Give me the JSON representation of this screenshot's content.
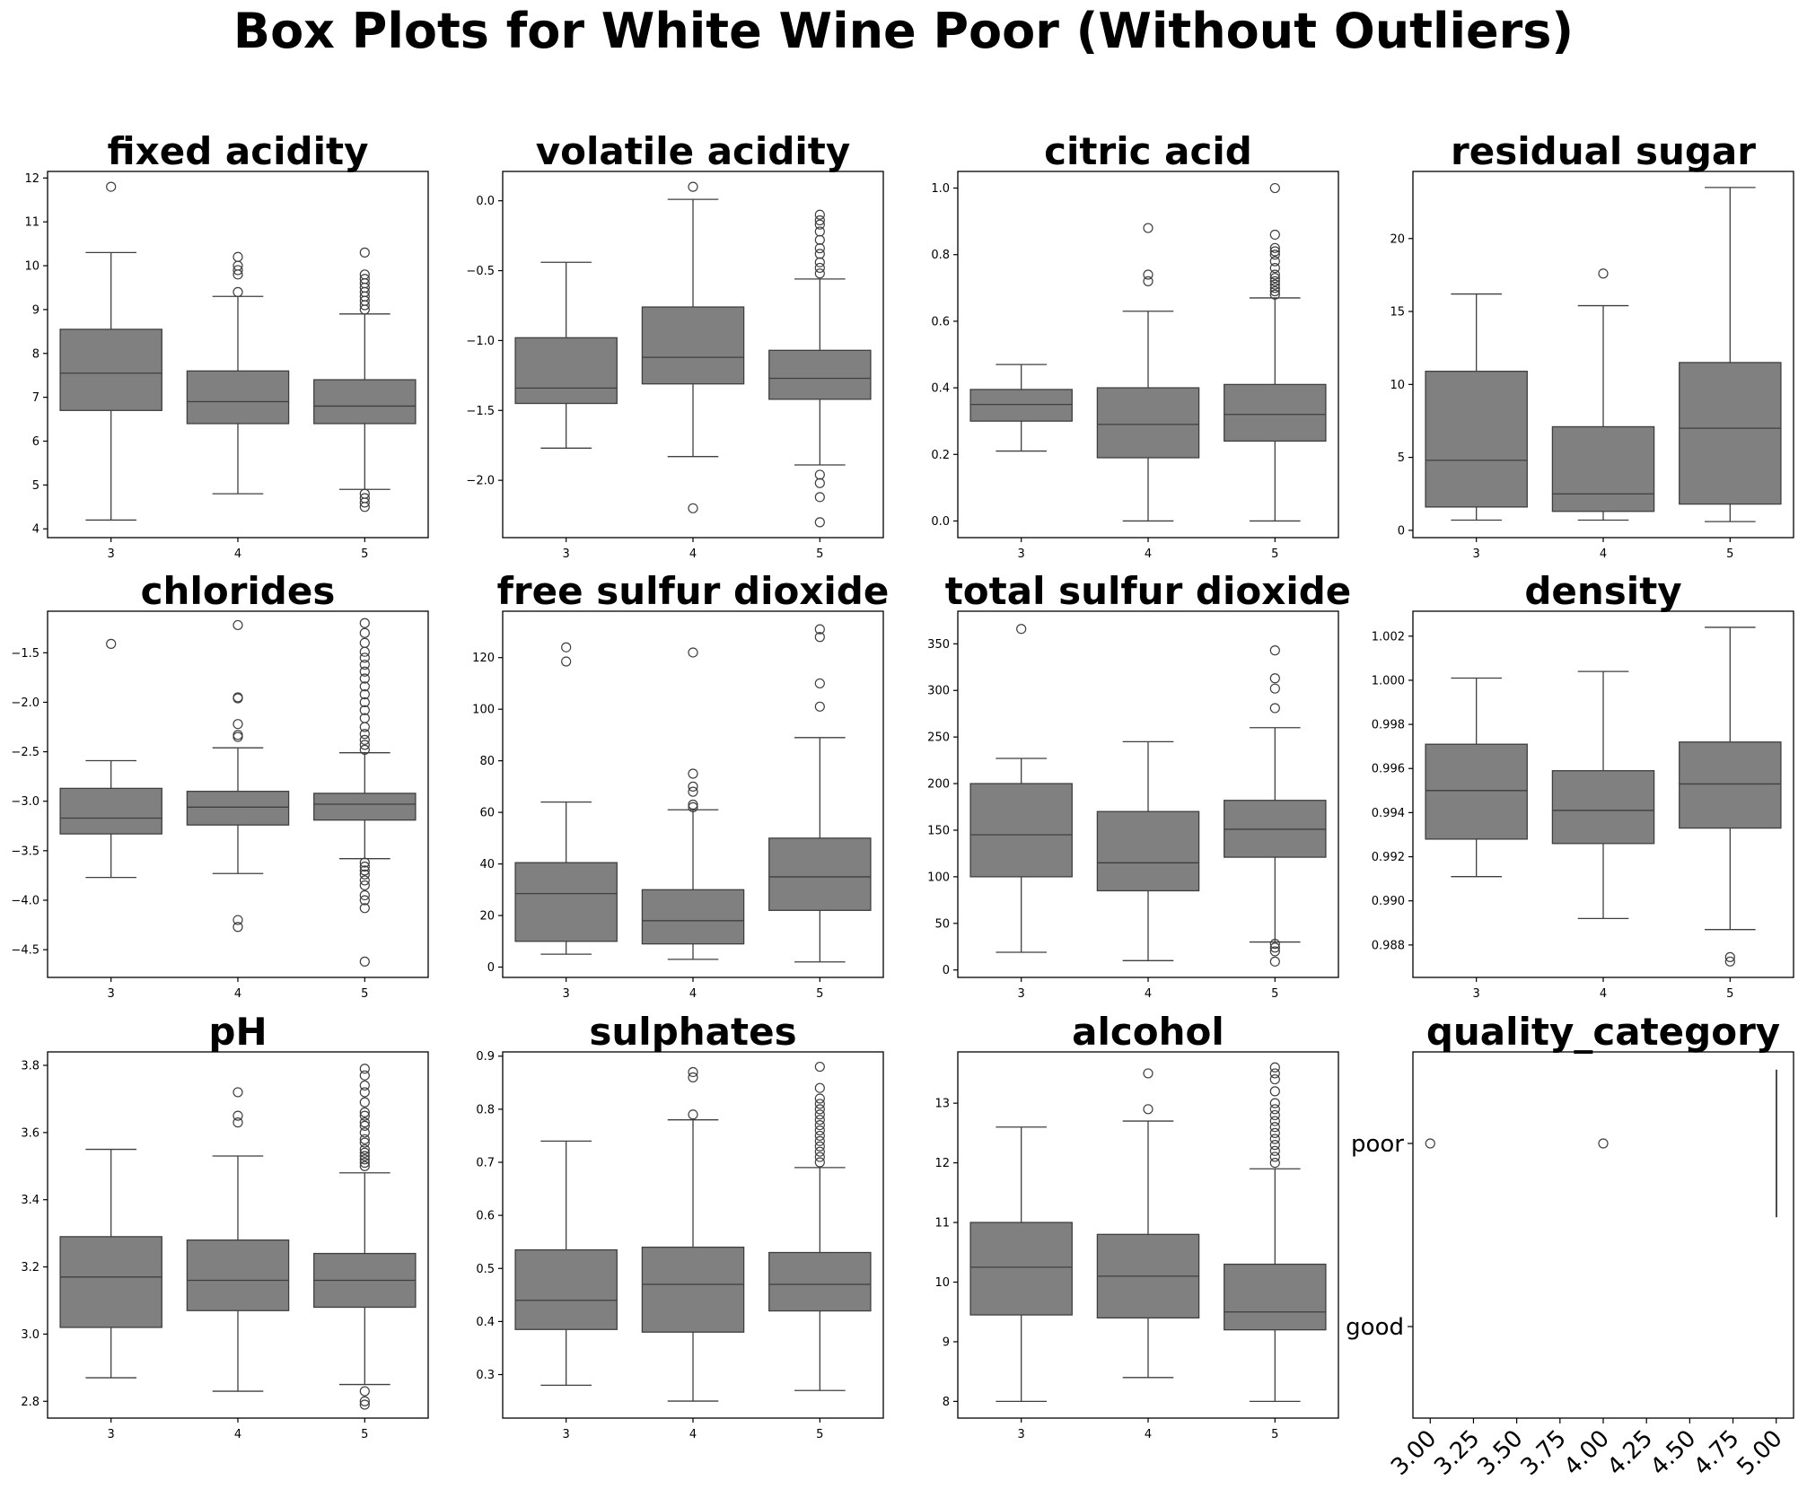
{
  "title": "Box Plots for White Wine Poor (Without Outliers)",
  "chart_data": [
    {
      "type": "box",
      "title": "fixed acidity",
      "categories": [
        "3",
        "4",
        "5"
      ],
      "ylim": [
        3.8,
        12.15
      ],
      "yticks": [
        4,
        5,
        6,
        7,
        8,
        9,
        10,
        11,
        12
      ],
      "ytick_labels": [
        "4",
        "5",
        "6",
        "7",
        "8",
        "9",
        "10",
        "11",
        "12"
      ],
      "boxes": [
        {
          "category": "3",
          "whislo": 4.2,
          "q1": 6.7,
          "med": 7.55,
          "q3": 8.55,
          "whishi": 10.3,
          "fliers": [
            11.8
          ]
        },
        {
          "category": "4",
          "whislo": 4.8,
          "q1": 6.4,
          "med": 6.9,
          "q3": 7.6,
          "whishi": 9.3,
          "fliers": [
            9.4,
            9.8,
            9.9,
            10.0,
            10.2
          ]
        },
        {
          "category": "5",
          "whislo": 4.9,
          "q1": 6.4,
          "med": 6.8,
          "q3": 7.4,
          "whishi": 8.9,
          "fliers": [
            4.5,
            4.6,
            4.7,
            4.8,
            9.0,
            9.1,
            9.2,
            9.3,
            9.4,
            9.5,
            9.6,
            9.7,
            9.8,
            10.3
          ]
        }
      ]
    },
    {
      "type": "box",
      "title": "volatile acidity",
      "categories": [
        "3",
        "4",
        "5"
      ],
      "ylim": [
        -2.41,
        0.21
      ],
      "yticks": [
        -2.0,
        -1.5,
        -1.0,
        -0.5,
        0.0
      ],
      "ytick_labels": [
        "−2.0",
        "−1.5",
        "−1.0",
        "−0.5",
        "0.0"
      ],
      "boxes": [
        {
          "category": "3",
          "whislo": -1.77,
          "q1": -1.45,
          "med": -1.34,
          "q3": -0.98,
          "whishi": -0.44,
          "fliers": []
        },
        {
          "category": "4",
          "whislo": -1.83,
          "q1": -1.31,
          "med": -1.12,
          "q3": -0.76,
          "whishi": 0.01,
          "fliers": [
            -2.2,
            0.1
          ]
        },
        {
          "category": "5",
          "whislo": -1.89,
          "q1": -1.42,
          "med": -1.27,
          "q3": -1.07,
          "whishi": -0.56,
          "fliers": [
            -2.3,
            -2.12,
            -2.02,
            -1.96,
            -0.52,
            -0.48,
            -0.44,
            -0.38,
            -0.34,
            -0.28,
            -0.22,
            -0.17,
            -0.14,
            -0.1
          ]
        }
      ]
    },
    {
      "type": "box",
      "title": "citric acid",
      "categories": [
        "3",
        "4",
        "5"
      ],
      "ylim": [
        -0.05,
        1.05
      ],
      "yticks": [
        0.0,
        0.2,
        0.4,
        0.6,
        0.8,
        1.0
      ],
      "ytick_labels": [
        "0.0",
        "0.2",
        "0.4",
        "0.6",
        "0.8",
        "1.0"
      ],
      "boxes": [
        {
          "category": "3",
          "whislo": 0.21,
          "q1": 0.3,
          "med": 0.35,
          "q3": 0.395,
          "whishi": 0.47,
          "fliers": []
        },
        {
          "category": "4",
          "whislo": 0.0,
          "q1": 0.19,
          "med": 0.29,
          "q3": 0.4,
          "whishi": 0.63,
          "fliers": [
            0.72,
            0.74,
            0.88
          ]
        },
        {
          "category": "5",
          "whislo": 0.0,
          "q1": 0.24,
          "med": 0.32,
          "q3": 0.41,
          "whishi": 0.67,
          "fliers": [
            0.68,
            0.69,
            0.7,
            0.71,
            0.72,
            0.73,
            0.74,
            0.76,
            0.78,
            0.8,
            0.81,
            0.82,
            0.86,
            1.0
          ]
        }
      ]
    },
    {
      "type": "box",
      "title": "residual sugar",
      "categories": [
        "3",
        "4",
        "5"
      ],
      "ylim": [
        -0.5,
        24.6
      ],
      "yticks": [
        0,
        5,
        10,
        15,
        20
      ],
      "ytick_labels": [
        "0",
        "5",
        "10",
        "15",
        "20"
      ],
      "boxes": [
        {
          "category": "3",
          "whislo": 0.7,
          "q1": 1.6,
          "med": 4.8,
          "q3": 10.9,
          "whishi": 16.2,
          "fliers": []
        },
        {
          "category": "4",
          "whislo": 0.7,
          "q1": 1.3,
          "med": 2.5,
          "q3": 7.1,
          "whishi": 15.4,
          "fliers": [
            17.6
          ]
        },
        {
          "category": "5",
          "whislo": 0.6,
          "q1": 1.8,
          "med": 7.0,
          "q3": 11.5,
          "whishi": 23.5,
          "fliers": []
        }
      ]
    },
    {
      "type": "box",
      "title": "chlorides",
      "categories": [
        "3",
        "4",
        "5"
      ],
      "ylim": [
        -4.78,
        -1.08
      ],
      "yticks": [
        -4.5,
        -4.0,
        -3.5,
        -3.0,
        -2.5,
        -2.0,
        -1.5
      ],
      "ytick_labels": [
        "−4.5",
        "−4.0",
        "−3.5",
        "−3.0",
        "−2.5",
        "−2.0",
        "−1.5"
      ],
      "boxes": [
        {
          "category": "3",
          "whislo": -3.77,
          "q1": -3.33,
          "med": -3.17,
          "q3": -2.87,
          "whishi": -2.59,
          "fliers": [
            -1.41
          ]
        },
        {
          "category": "4",
          "whislo": -3.73,
          "q1": -3.24,
          "med": -3.06,
          "q3": -2.9,
          "whishi": -2.46,
          "fliers": [
            -4.27,
            -4.2,
            -2.35,
            -2.33,
            -2.22,
            -1.96,
            -1.95,
            -1.22
          ]
        },
        {
          "category": "5",
          "whislo": -3.58,
          "q1": -3.19,
          "med": -3.03,
          "q3": -2.92,
          "whishi": -2.51,
          "fliers": [
            -4.62,
            -4.08,
            -4.0,
            -3.95,
            -3.85,
            -3.8,
            -3.74,
            -3.7,
            -3.66,
            -3.62,
            -2.48,
            -2.43,
            -2.38,
            -2.32,
            -2.25,
            -2.16,
            -2.08,
            -2.0,
            -1.92,
            -1.84,
            -1.76,
            -1.69,
            -1.62,
            -1.55,
            -1.49,
            -1.4,
            -1.3,
            -1.2
          ]
        }
      ]
    },
    {
      "type": "box",
      "title": "free sulfur dioxide",
      "categories": [
        "3",
        "4",
        "5"
      ],
      "ylim": [
        -4,
        138
      ],
      "yticks": [
        0,
        20,
        40,
        60,
        80,
        100,
        120
      ],
      "ytick_labels": [
        "0",
        "20",
        "40",
        "60",
        "80",
        "100",
        "120"
      ],
      "boxes": [
        {
          "category": "3",
          "whislo": 5,
          "q1": 10,
          "med": 28.5,
          "q3": 40.5,
          "whishi": 64,
          "fliers": [
            118.5,
            124
          ]
        },
        {
          "category": "4",
          "whislo": 3,
          "q1": 9,
          "med": 18,
          "q3": 30,
          "whishi": 61,
          "fliers": [
            62,
            63,
            68,
            70,
            75,
            122
          ]
        },
        {
          "category": "5",
          "whislo": 2,
          "q1": 22,
          "med": 35,
          "q3": 50,
          "whishi": 89,
          "fliers": [
            101,
            110,
            128,
            131
          ]
        }
      ]
    },
    {
      "type": "box",
      "title": "total sulfur dioxide",
      "categories": [
        "3",
        "4",
        "5"
      ],
      "ylim": [
        -8,
        385
      ],
      "yticks": [
        0,
        50,
        100,
        150,
        200,
        250,
        300,
        350
      ],
      "ytick_labels": [
        "0",
        "50",
        "100",
        "150",
        "200",
        "250",
        "300",
        "350"
      ],
      "boxes": [
        {
          "category": "3",
          "whislo": 19,
          "q1": 100,
          "med": 145,
          "q3": 200,
          "whishi": 227,
          "fliers": [
            366
          ]
        },
        {
          "category": "4",
          "whislo": 10,
          "q1": 85,
          "med": 115,
          "q3": 170,
          "whishi": 245,
          "fliers": []
        },
        {
          "category": "5",
          "whislo": 30,
          "q1": 121,
          "med": 151,
          "q3": 182,
          "whishi": 260,
          "fliers": [
            9,
            20,
            24,
            28,
            281,
            302,
            313,
            343
          ]
        }
      ]
    },
    {
      "type": "box",
      "title": "density",
      "categories": [
        "3",
        "4",
        "5"
      ],
      "ylim": [
        0.98653,
        1.00313
      ],
      "yticks": [
        0.988,
        0.99,
        0.992,
        0.994,
        0.996,
        0.998,
        1.0,
        1.002
      ],
      "ytick_labels": [
        "0.988",
        "0.990",
        "0.992",
        "0.994",
        "0.996",
        "0.998",
        "1.000",
        "1.002"
      ],
      "boxes": [
        {
          "category": "3",
          "whislo": 0.9911,
          "q1": 0.9928,
          "med": 0.995,
          "q3": 0.9971,
          "whishi": 1.0001,
          "fliers": []
        },
        {
          "category": "4",
          "whislo": 0.9892,
          "q1": 0.9926,
          "med": 0.9941,
          "q3": 0.9959,
          "whishi": 1.0004,
          "fliers": []
        },
        {
          "category": "5",
          "whislo": 0.9887,
          "q1": 0.9933,
          "med": 0.9953,
          "q3": 0.9972,
          "whishi": 1.0024,
          "fliers": [
            0.98725,
            0.98745
          ]
        }
      ]
    },
    {
      "type": "box",
      "title": "pH",
      "categories": [
        "3",
        "4",
        "5"
      ],
      "ylim": [
        2.75,
        3.84
      ],
      "yticks": [
        2.8,
        3.0,
        3.2,
        3.4,
        3.6,
        3.8
      ],
      "ytick_labels": [
        "2.8",
        "3.0",
        "3.2",
        "3.4",
        "3.6",
        "3.8"
      ],
      "boxes": [
        {
          "category": "3",
          "whislo": 2.87,
          "q1": 3.02,
          "med": 3.17,
          "q3": 3.29,
          "whishi": 3.55,
          "fliers": []
        },
        {
          "category": "4",
          "whislo": 2.83,
          "q1": 3.07,
          "med": 3.16,
          "q3": 3.28,
          "whishi": 3.53,
          "fliers": [
            3.63,
            3.65,
            3.72
          ]
        },
        {
          "category": "5",
          "whislo": 2.85,
          "q1": 3.08,
          "med": 3.16,
          "q3": 3.24,
          "whishi": 3.48,
          "fliers": [
            2.79,
            2.8,
            2.83,
            3.5,
            3.51,
            3.52,
            3.53,
            3.54,
            3.55,
            3.57,
            3.58,
            3.6,
            3.62,
            3.63,
            3.65,
            3.66,
            3.69,
            3.72,
            3.74,
            3.77,
            3.79
          ]
        }
      ]
    },
    {
      "type": "box",
      "title": "sulphates",
      "categories": [
        "3",
        "4",
        "5"
      ],
      "ylim": [
        0.218,
        0.908
      ],
      "yticks": [
        0.3,
        0.4,
        0.5,
        0.6,
        0.7,
        0.8,
        0.9
      ],
      "ytick_labels": [
        "0.3",
        "0.4",
        "0.5",
        "0.6",
        "0.7",
        "0.8",
        "0.9"
      ],
      "boxes": [
        {
          "category": "3",
          "whislo": 0.28,
          "q1": 0.385,
          "med": 0.44,
          "q3": 0.535,
          "whishi": 0.74,
          "fliers": []
        },
        {
          "category": "4",
          "whislo": 0.25,
          "q1": 0.38,
          "med": 0.47,
          "q3": 0.54,
          "whishi": 0.78,
          "fliers": [
            0.79,
            0.86,
            0.87
          ]
        },
        {
          "category": "5",
          "whislo": 0.27,
          "q1": 0.42,
          "med": 0.47,
          "q3": 0.53,
          "whishi": 0.69,
          "fliers": [
            0.7,
            0.71,
            0.72,
            0.73,
            0.74,
            0.75,
            0.76,
            0.77,
            0.78,
            0.79,
            0.8,
            0.81,
            0.82,
            0.84,
            0.88
          ]
        }
      ]
    },
    {
      "type": "box",
      "title": "alcohol",
      "categories": [
        "3",
        "4",
        "5"
      ],
      "ylim": [
        7.72,
        13.86
      ],
      "yticks": [
        8,
        9,
        10,
        11,
        12,
        13
      ],
      "ytick_labels": [
        "8",
        "9",
        "10",
        "11",
        "12",
        "13"
      ],
      "boxes": [
        {
          "category": "3",
          "whislo": 8.0,
          "q1": 9.45,
          "med": 10.25,
          "q3": 11.0,
          "whishi": 12.6,
          "fliers": []
        },
        {
          "category": "4",
          "whislo": 8.4,
          "q1": 9.4,
          "med": 10.1,
          "q3": 10.8,
          "whishi": 12.7,
          "fliers": [
            12.9,
            13.5
          ]
        },
        {
          "category": "5",
          "whislo": 8.0,
          "q1": 9.2,
          "med": 9.5,
          "q3": 10.3,
          "whishi": 11.9,
          "fliers": [
            12.0,
            12.1,
            12.2,
            12.3,
            12.4,
            12.5,
            12.6,
            12.7,
            12.8,
            12.9,
            13.0,
            13.2,
            13.4,
            13.5,
            13.6
          ]
        }
      ]
    },
    {
      "type": "box",
      "title": "quality_category",
      "orientation": "horizontal",
      "categories": [
        "poor",
        "good"
      ],
      "xlim": [
        2.9,
        5.1
      ],
      "xticks": [
        3.0,
        3.25,
        3.5,
        3.75,
        4.0,
        4.25,
        4.5,
        4.75,
        5.0
      ],
      "xtick_labels": [
        "3.00",
        "3.25",
        "3.50",
        "3.75",
        "4.00",
        "4.25",
        "4.50",
        "4.75",
        "5.00"
      ],
      "boxes": [
        {
          "category": "poor",
          "whislo": 5.0,
          "q1": 5.0,
          "med": 5.0,
          "q3": 5.0,
          "whishi": 5.0,
          "fliers": [
            3.0,
            4.0
          ]
        },
        {
          "category": "good",
          "fliers": []
        }
      ]
    }
  ]
}
